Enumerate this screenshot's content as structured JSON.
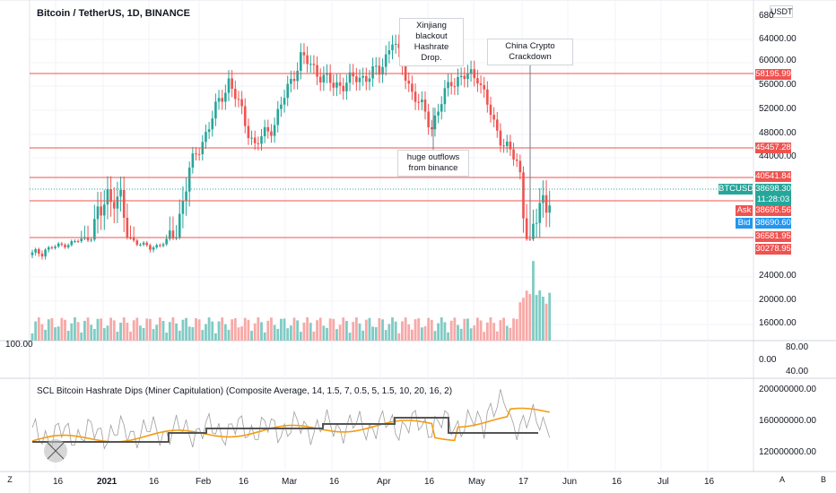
{
  "header": {
    "title": "Bitcoin / TetherUS, 1D, BINANCE"
  },
  "currency_badge": "USDT",
  "top_axis_label": "680",
  "price_axis": [
    "64000.00",
    "60000.00",
    "56000.00",
    "52000.00",
    "48000.00",
    "44000.00",
    "24000.00",
    "20000.00",
    "16000.00"
  ],
  "price_tags": {
    "level_58195": "58195.99",
    "level_45457": "45457.28",
    "level_40541": "40541.84",
    "ticker": "BTCUSDT",
    "last": "38698.30",
    "countdown": "11:28:03",
    "ask_label": "Ask",
    "ask": "38695.56",
    "bid_label": "Bid",
    "bid": "38690.60",
    "level_36581": "36581.95",
    "level_30278": "30278.95"
  },
  "annotations": {
    "xinjiang": "Xinjiang blackout Hashrate Drop.",
    "china": "China Crypto Crackdown",
    "outflows": "huge outflows from binance"
  },
  "mid_pane": {
    "left_value": "100.00",
    "right": [
      "80.00",
      "0.00",
      "40.00"
    ]
  },
  "indicator": {
    "label": "SCL Bitcoin Hashrate Dips (Miner Capitulation) (Composite Average, 14, 1.5, 7, 0.5, 5, 1.5, 10, 20, 16, 2)",
    "axis": [
      "200000000.00",
      "160000000.00",
      "120000000.00"
    ]
  },
  "time_axis": [
    "16",
    "2021",
    "16",
    "Feb",
    "16",
    "Mar",
    "16",
    "Apr",
    "16",
    "May",
    "17",
    "Jun",
    "16",
    "Jul",
    "16"
  ],
  "bottom_buttons": {
    "left": "Z",
    "auto": "A",
    "b": "B"
  },
  "colors": {
    "up": "#26a69a",
    "down": "#ef5350",
    "level": "#ef5350",
    "ma": "#f39c12",
    "bid": "#2196f3"
  },
  "chart_data": {
    "type": "candlestick",
    "level_lines": [
      58195.99,
      45457.28,
      40541.84,
      38695.56,
      36581.95
    ],
    "series": [
      {
        "name": "BTCUSDT",
        "last": 38698.3
      }
    ]
  }
}
